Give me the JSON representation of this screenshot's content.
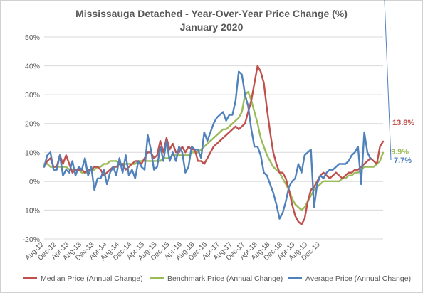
{
  "chart_data": {
    "type": "line",
    "title": "Mississauga Detached - Year-Over-Year Price Change (%)",
    "subtitle": "January 2020",
    "xlabel": "",
    "ylabel": "",
    "ylim": [
      -20,
      50
    ],
    "y_ticks": [
      "-20%",
      "-10%",
      "0%",
      "10%",
      "20%",
      "30%",
      "40%",
      "50%"
    ],
    "y_tick_values": [
      -20,
      -10,
      0,
      10,
      20,
      30,
      40,
      50
    ],
    "grid": "horizontal",
    "x_start": "Aug-12",
    "x_ticks": [
      "Aug-12",
      "Dec-12",
      "Apr-13",
      "Aug-13",
      "Dec-13",
      "Apr-14",
      "Aug-14",
      "Dec-14",
      "Apr-15",
      "Aug-15",
      "Dec-15",
      "Apr-16",
      "Aug-16",
      "Dec-16",
      "Apr-17",
      "Aug-17",
      "Dec-17",
      "Apr-18",
      "Aug-18",
      "Dec-18",
      "Apr-19",
      "Aug-19",
      "Dec-19"
    ],
    "legend_position": "bottom",
    "series": [
      {
        "name": "Median Price (Annual Change)",
        "color": "#c0504d",
        "end_label": "13.8%",
        "values": [
          5,
          7,
          8,
          5,
          5,
          9,
          6,
          9,
          6,
          3,
          4,
          4,
          4,
          3,
          4,
          4,
          5,
          5,
          4,
          2,
          3,
          4,
          5,
          5,
          6,
          6,
          4,
          5,
          6,
          7,
          7,
          6,
          8,
          10,
          10,
          8,
          9,
          14,
          10,
          15,
          11,
          13,
          10,
          10,
          12,
          10,
          12,
          11,
          11,
          7,
          7,
          6,
          8,
          10,
          12,
          13,
          14,
          15,
          16,
          17,
          18,
          19,
          18,
          19,
          20,
          24,
          28,
          34,
          40,
          38,
          34,
          25,
          17,
          10,
          6,
          3,
          3,
          1,
          -3,
          -8,
          -12,
          -14,
          -15,
          -13,
          -7,
          -3,
          -2,
          0,
          2,
          3,
          2,
          1,
          2,
          3,
          2,
          1,
          2,
          3,
          3,
          4,
          4,
          5,
          6,
          7,
          8,
          7,
          6,
          12,
          13.8
        ]
      },
      {
        "name": "Benchmark Price (Annual Change)",
        "color": "#9bbb59",
        "end_label": "9.9%",
        "values": [
          6,
          6,
          5,
          5,
          5,
          5,
          5,
          5,
          4,
          4,
          4,
          4,
          3,
          3,
          3,
          4,
          4,
          5,
          5,
          6,
          6,
          7,
          7,
          7,
          6,
          6,
          6,
          6,
          6,
          6,
          7,
          7,
          7,
          7,
          7,
          7,
          7,
          7,
          8,
          8,
          8,
          9,
          9,
          9,
          9,
          9,
          9,
          10,
          10,
          10,
          11,
          12,
          13,
          14,
          15,
          16,
          17,
          18,
          18,
          19,
          20,
          21,
          22,
          24,
          30,
          31,
          28,
          24,
          20,
          15,
          12,
          9,
          7,
          5,
          4,
          3,
          1,
          -1,
          -3,
          -6,
          -8,
          -9,
          -10,
          -9,
          -7,
          -5,
          -3,
          -2,
          -1,
          0,
          0,
          0,
          0,
          0,
          0,
          1,
          1,
          2,
          2,
          3,
          3,
          4,
          5,
          5,
          5,
          5,
          6,
          7,
          9.9
        ]
      },
      {
        "name": "Average Price (Annual Change)",
        "color": "#4f81bd",
        "end_label": "7.7%",
        "values": [
          5,
          9,
          10,
          4,
          4,
          9,
          2,
          4,
          3,
          7,
          2,
          5,
          4,
          8,
          2,
          5,
          -3,
          1,
          1,
          4,
          -1,
          3,
          5,
          2,
          8,
          3,
          9,
          2,
          4,
          1,
          7,
          5,
          4,
          16,
          11,
          4,
          5,
          12,
          7,
          14,
          7,
          10,
          7,
          12,
          10,
          3,
          5,
          12,
          11,
          11,
          8,
          17,
          14,
          17,
          20,
          22,
          23,
          24,
          21,
          23,
          23,
          28,
          38,
          37,
          30,
          26,
          18,
          12,
          12,
          9,
          3,
          2,
          -1,
          -4,
          -8,
          -13,
          -11,
          -7,
          -2,
          0,
          1,
          6,
          3,
          9,
          10,
          11,
          -9,
          -1,
          2,
          1,
          3,
          4,
          4,
          5,
          6,
          6,
          6,
          7,
          9,
          10,
          12,
          -1,
          17,
          10,
          7.7
        ]
      }
    ]
  }
}
